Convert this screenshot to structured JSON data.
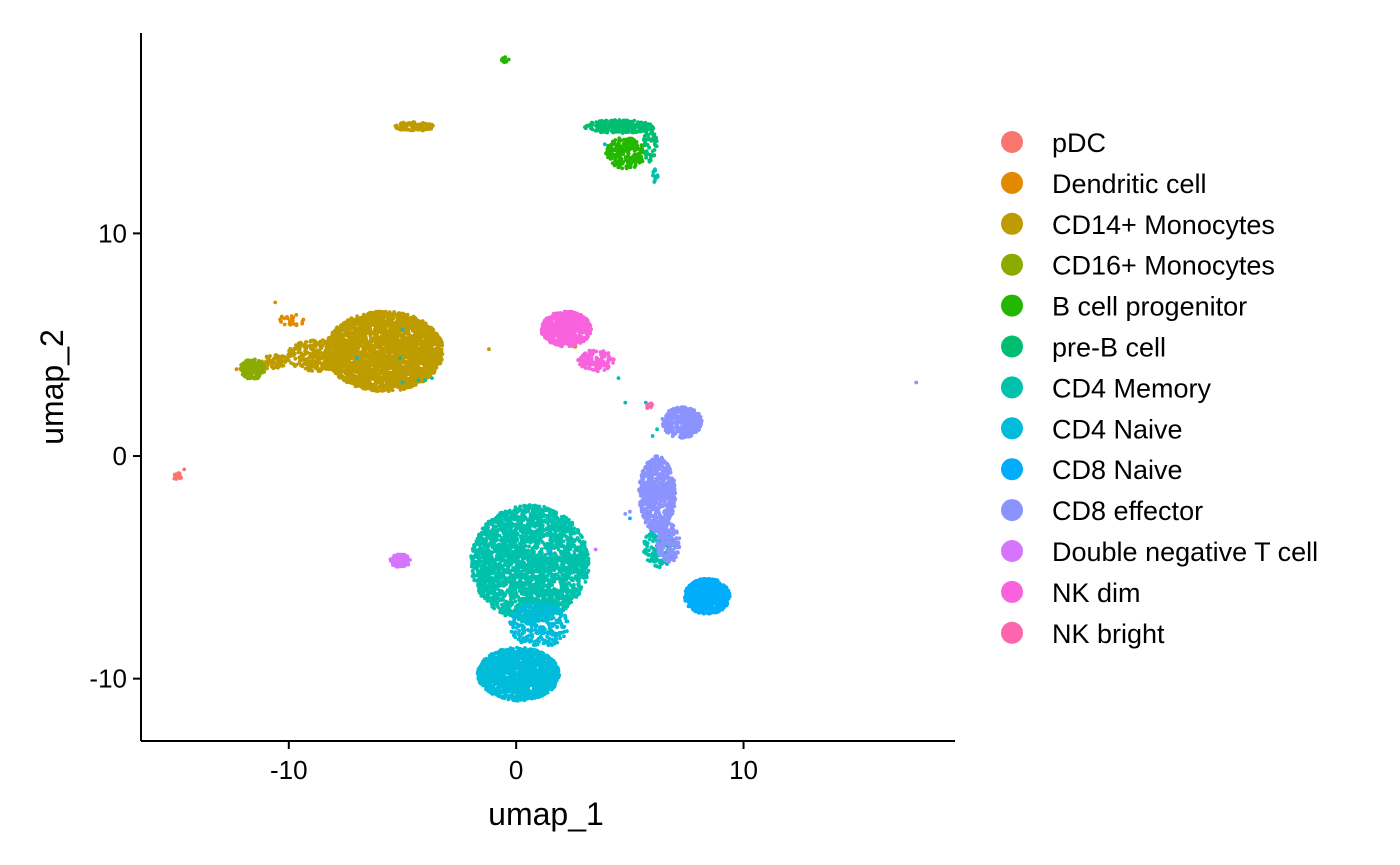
{
  "chart_data": {
    "type": "scatter",
    "title": "",
    "xlabel": "umap_1",
    "ylabel": "umap_2",
    "xlim": [
      -16.5,
      19.3
    ],
    "ylim": [
      -12.8,
      19.0
    ],
    "x_ticks": [
      -10,
      0,
      10
    ],
    "y_ticks": [
      -10,
      0,
      10
    ],
    "x_tick_labels": [
      "-10",
      "0",
      "10"
    ],
    "y_tick_labels": [
      "-10",
      "0",
      "10"
    ],
    "grid": false,
    "legend_position": "right",
    "series": [
      {
        "name": "pDC",
        "color": "#F8766D",
        "clusters": [
          {
            "cx": -14.9,
            "cy": -0.9,
            "rx": 0.2,
            "ry": 0.15,
            "n": 18
          }
        ],
        "points": [
          [
            -14.6,
            -0.6
          ]
        ]
      },
      {
        "name": "Dendritic cell",
        "color": "#E18A00",
        "clusters": [
          {
            "cx": -9.8,
            "cy": 6.1,
            "rx": 0.6,
            "ry": 0.35,
            "n": 25
          }
        ],
        "points": [
          [
            -10.6,
            6.9
          ],
          [
            -8.5,
            5.2
          ],
          [
            -7.7,
            4.7
          ],
          [
            -12.3,
            3.9
          ]
        ]
      },
      {
        "name": "CD14+ Monocytes",
        "color": "#BE9C00",
        "clusters": [
          {
            "cx": -5.8,
            "cy": 4.7,
            "rx": 2.6,
            "ry": 1.8,
            "n": 2800
          },
          {
            "cx": -8.8,
            "cy": 4.5,
            "rx": 1.3,
            "ry": 0.7,
            "n": 260
          },
          {
            "cx": -10.6,
            "cy": 4.2,
            "rx": 0.6,
            "ry": 0.35,
            "n": 60
          },
          {
            "cx": -4.5,
            "cy": 14.8,
            "rx": 0.9,
            "ry": 0.2,
            "n": 100
          }
        ],
        "points": [
          [
            -1.2,
            4.8
          ],
          [
            2.6,
            4.9
          ]
        ]
      },
      {
        "name": "CD16+ Monocytes",
        "color": "#8CAB00",
        "clusters": [
          {
            "cx": -11.6,
            "cy": 3.9,
            "rx": 0.55,
            "ry": 0.45,
            "n": 220
          }
        ],
        "points": []
      },
      {
        "name": "B cell progenitor",
        "color": "#24B700",
        "clusters": [
          {
            "cx": 4.8,
            "cy": 13.6,
            "rx": 0.9,
            "ry": 0.7,
            "n": 220
          },
          {
            "cx": -0.5,
            "cy": 17.8,
            "rx": 0.18,
            "ry": 0.12,
            "n": 15
          }
        ],
        "points": []
      },
      {
        "name": "pre-B cell",
        "color": "#00BE70",
        "clusters": [
          {
            "cx": 4.5,
            "cy": 14.8,
            "rx": 1.5,
            "ry": 0.3,
            "n": 240
          },
          {
            "cx": 5.9,
            "cy": 14.0,
            "rx": 0.3,
            "ry": 0.8,
            "n": 60
          }
        ],
        "points": []
      },
      {
        "name": "CD4 Memory",
        "color": "#00C1AB",
        "clusters": [
          {
            "cx": 0.6,
            "cy": -4.8,
            "rx": 2.6,
            "ry": 2.6,
            "n": 2600
          },
          {
            "cx": 6.3,
            "cy": -4.1,
            "rx": 0.7,
            "ry": 0.9,
            "n": 160
          },
          {
            "cx": 6.1,
            "cy": 12.6,
            "rx": 0.15,
            "ry": 0.3,
            "n": 12
          }
        ],
        "points": [
          [
            -4.3,
            3.4
          ],
          [
            -4.0,
            3.4
          ],
          [
            -3.7,
            3.5
          ],
          [
            -5.1,
            4.4
          ],
          [
            4.5,
            3.5
          ],
          [
            4.8,
            2.4
          ],
          [
            7.9,
            1.5
          ],
          [
            6.2,
            1.2
          ]
        ]
      },
      {
        "name": "CD4 Naive",
        "color": "#00BBDA",
        "clusters": [
          {
            "cx": 0.1,
            "cy": -9.8,
            "rx": 1.8,
            "ry": 1.2,
            "n": 1500
          },
          {
            "cx": 1.0,
            "cy": -7.6,
            "rx": 1.3,
            "ry": 1.0,
            "n": 300
          }
        ],
        "points": [
          [
            -5.0,
            5.7
          ],
          [
            -5.0,
            3.3
          ],
          [
            -7.0,
            4.4
          ],
          [
            6.0,
            0.9
          ],
          [
            5.7,
            2.4
          ]
        ]
      },
      {
        "name": "CD8 Naive",
        "color": "#00ACFC",
        "clusters": [
          {
            "cx": 8.4,
            "cy": -6.3,
            "rx": 1.0,
            "ry": 0.8,
            "n": 700
          }
        ],
        "points": [
          [
            3.9,
            14.0
          ],
          [
            1.5,
            -4.3
          ],
          [
            5.0,
            -2.8
          ]
        ]
      },
      {
        "name": "CD8 effector",
        "color": "#8B93FF",
        "clusters": [
          {
            "cx": 6.2,
            "cy": -1.7,
            "rx": 0.8,
            "ry": 1.7,
            "n": 700
          },
          {
            "cx": 7.3,
            "cy": 1.5,
            "rx": 0.9,
            "ry": 0.7,
            "n": 350
          },
          {
            "cx": 6.7,
            "cy": -3.9,
            "rx": 0.5,
            "ry": 0.9,
            "n": 150
          }
        ],
        "points": [
          [
            17.6,
            3.3
          ],
          [
            5.0,
            -2.5
          ],
          [
            4.8,
            -2.6
          ]
        ]
      },
      {
        "name": "Double negative T cell",
        "color": "#D575FE",
        "clusters": [
          {
            "cx": -5.1,
            "cy": -4.7,
            "rx": 0.45,
            "ry": 0.3,
            "n": 100
          }
        ],
        "points": [
          [
            3.5,
            -4.2
          ]
        ]
      },
      {
        "name": "NK dim",
        "color": "#F962DD",
        "clusters": [
          {
            "cx": 2.2,
            "cy": 5.7,
            "rx": 1.1,
            "ry": 0.8,
            "n": 600
          },
          {
            "cx": 3.5,
            "cy": 4.3,
            "rx": 0.8,
            "ry": 0.5,
            "n": 120
          }
        ],
        "points": []
      },
      {
        "name": "NK bright",
        "color": "#FF65AC",
        "clusters": [
          {
            "cx": 5.8,
            "cy": 2.3,
            "rx": 0.2,
            "ry": 0.15,
            "n": 12
          }
        ],
        "points": []
      }
    ]
  }
}
